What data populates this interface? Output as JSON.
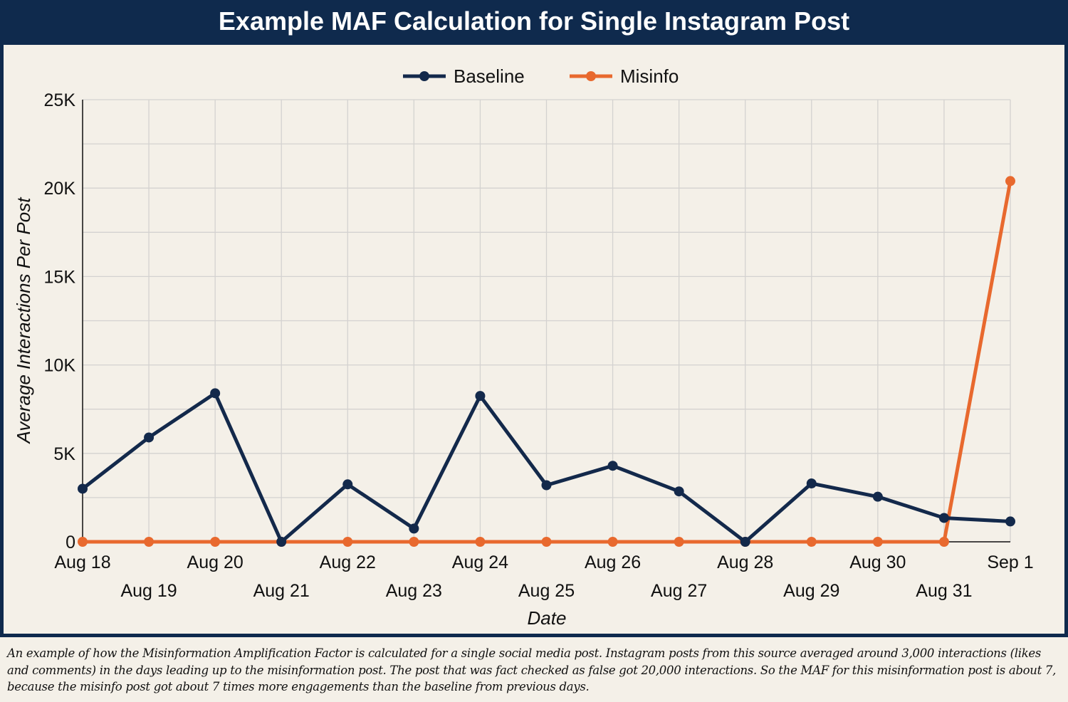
{
  "chart_data": {
    "type": "line",
    "title": "Example MAF Calculation for Single Instagram Post",
    "xlabel": "Date",
    "ylabel": "Average Interactions Per Post",
    "categories": [
      "Aug 18",
      "Aug 19",
      "Aug 20",
      "Aug 21",
      "Aug 22",
      "Aug 23",
      "Aug 24",
      "Aug 25",
      "Aug 26",
      "Aug 27",
      "Aug 28",
      "Aug 29",
      "Aug 30",
      "Aug 31",
      "Sep 1"
    ],
    "y_ticks": [
      0,
      5000,
      10000,
      15000,
      20000,
      25000
    ],
    "y_tick_labels": [
      "0",
      "5K",
      "10K",
      "15K",
      "20K",
      "25K"
    ],
    "ylim": [
      0,
      25000
    ],
    "grid": true,
    "legend_position": "top-center",
    "series": [
      {
        "name": "Baseline",
        "color": "#13294b",
        "values": [
          3000,
          5900,
          8400,
          0,
          3250,
          750,
          8250,
          3200,
          4300,
          2850,
          0,
          3300,
          2550,
          1350,
          1150
        ]
      },
      {
        "name": "Misinfo",
        "color": "#e8692e",
        "values": [
          0,
          0,
          0,
          0,
          0,
          0,
          0,
          0,
          0,
          0,
          0,
          0,
          0,
          0,
          20400
        ]
      }
    ]
  },
  "caption": "An example of how the Misinformation Amplification Factor is calculated for a single social media post. Instagram posts from this source averaged around 3,000 interactions (likes and comments) in the days leading up to the misinformation post. The post that was fact checked as false got 20,000 interactions. So the MAF for this misinformation post is about 7, because the misinfo post got about 7 times more engagements than the baseline from previous days."
}
